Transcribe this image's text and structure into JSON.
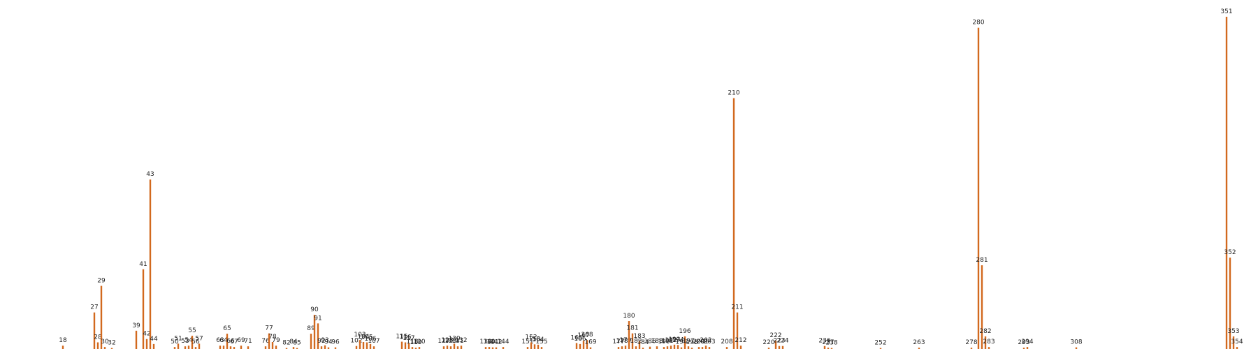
{
  "chart_data": {
    "type": "bar",
    "title": "",
    "xlabel": "",
    "ylabel": "",
    "bar_color": "#d2691e",
    "grid": false,
    "axes_visible": false,
    "xlim": [
      0,
      360
    ],
    "ylim": [
      0,
      100
    ],
    "points": [
      {
        "x": 18,
        "y": 1,
        "label": "18"
      },
      {
        "x": 27,
        "y": 11,
        "label": "27"
      },
      {
        "x": 28,
        "y": 2,
        "label": "28"
      },
      {
        "x": 29,
        "y": 19,
        "label": "29"
      },
      {
        "x": 30,
        "y": 0.6,
        "label": "30"
      },
      {
        "x": 32,
        "y": 0.3,
        "label": "32"
      },
      {
        "x": 39,
        "y": 5.5,
        "label": "39"
      },
      {
        "x": 41,
        "y": 24,
        "label": "41"
      },
      {
        "x": 42,
        "y": 3,
        "label": "42"
      },
      {
        "x": 43,
        "y": 51,
        "label": "43"
      },
      {
        "x": 44,
        "y": 1.5,
        "label": "44"
      },
      {
        "x": 50,
        "y": 0.6,
        "label": "50"
      },
      {
        "x": 51,
        "y": 1.6,
        "label": "51"
      },
      {
        "x": 53,
        "y": 0.8,
        "label": "53"
      },
      {
        "x": 54,
        "y": 1,
        "label": "54"
      },
      {
        "x": 55,
        "y": 4,
        "label": "55"
      },
      {
        "x": 56,
        "y": 0.6,
        "label": "56"
      },
      {
        "x": 57,
        "y": 1.6,
        "label": "57"
      },
      {
        "x": 63,
        "y": 1,
        "label": "63"
      },
      {
        "x": 64,
        "y": 1,
        "label": "64"
      },
      {
        "x": 65,
        "y": 4.6,
        "label": "65"
      },
      {
        "x": 66,
        "y": 0.8,
        "label": "66"
      },
      {
        "x": 67,
        "y": 0.6,
        "label": "67"
      },
      {
        "x": 69,
        "y": 1,
        "label": "69"
      },
      {
        "x": 71,
        "y": 0.8,
        "label": "71"
      },
      {
        "x": 76,
        "y": 0.8,
        "label": "76"
      },
      {
        "x": 77,
        "y": 4.7,
        "label": "77"
      },
      {
        "x": 78,
        "y": 2.1,
        "label": "78"
      },
      {
        "x": 79,
        "y": 1,
        "label": "79"
      },
      {
        "x": 82,
        "y": 0.3,
        "label": "82"
      },
      {
        "x": 84,
        "y": 0.6,
        "label": "84"
      },
      {
        "x": 85,
        "y": 0.3,
        "label": "85"
      },
      {
        "x": 89,
        "y": 4.6,
        "label": "89"
      },
      {
        "x": 90,
        "y": 10.3,
        "label": "90"
      },
      {
        "x": 91,
        "y": 7.7,
        "label": "91"
      },
      {
        "x": 92,
        "y": 0.8,
        "label": "92"
      },
      {
        "x": 93,
        "y": 1.1,
        "label": "93"
      },
      {
        "x": 94,
        "y": 0.5,
        "label": "94"
      },
      {
        "x": 96,
        "y": 0.5,
        "label": "96"
      },
      {
        "x": 102,
        "y": 0.9,
        "label": "102"
      },
      {
        "x": 103,
        "y": 2.7,
        "label": "103"
      },
      {
        "x": 104,
        "y": 2.1,
        "label": "104"
      },
      {
        "x": 105,
        "y": 2,
        "label": "105"
      },
      {
        "x": 106,
        "y": 1.5,
        "label": "106"
      },
      {
        "x": 107,
        "y": 0.8,
        "label": "107"
      },
      {
        "x": 115,
        "y": 2.2,
        "label": "115"
      },
      {
        "x": 116,
        "y": 2,
        "label": "116"
      },
      {
        "x": 117,
        "y": 1.7,
        "label": "117"
      },
      {
        "x": 118,
        "y": 0.6,
        "label": "118"
      },
      {
        "x": 119,
        "y": 0.4,
        "label": "119"
      },
      {
        "x": 120,
        "y": 0.6,
        "label": "120"
      },
      {
        "x": 127,
        "y": 0.8,
        "label": "127"
      },
      {
        "x": 128,
        "y": 1,
        "label": "128"
      },
      {
        "x": 129,
        "y": 0.8,
        "label": "129"
      },
      {
        "x": 130,
        "y": 1.6,
        "label": "130"
      },
      {
        "x": 131,
        "y": 0.8,
        "label": "131"
      },
      {
        "x": 132,
        "y": 1,
        "label": "132"
      },
      {
        "x": 139,
        "y": 0.6,
        "label": "139"
      },
      {
        "x": 140,
        "y": 0.6,
        "label": "140"
      },
      {
        "x": 141,
        "y": 0.5,
        "label": "141"
      },
      {
        "x": 142,
        "y": 0.5,
        "label": "142"
      },
      {
        "x": 144,
        "y": 0.6,
        "label": "144"
      },
      {
        "x": 151,
        "y": 0.6,
        "label": "151"
      },
      {
        "x": 152,
        "y": 2,
        "label": "152"
      },
      {
        "x": 153,
        "y": 1.4,
        "label": "153"
      },
      {
        "x": 154,
        "y": 1.3,
        "label": "154"
      },
      {
        "x": 155,
        "y": 0.6,
        "label": "155"
      },
      {
        "x": 165,
        "y": 1.8,
        "label": "165"
      },
      {
        "x": 166,
        "y": 1.5,
        "label": "166"
      },
      {
        "x": 167,
        "y": 2.5,
        "label": "167"
      },
      {
        "x": 168,
        "y": 2.7,
        "label": "168"
      },
      {
        "x": 169,
        "y": 0.5,
        "label": "169"
      },
      {
        "x": 177,
        "y": 0.6,
        "label": "177"
      },
      {
        "x": 178,
        "y": 0.8,
        "label": "178"
      },
      {
        "x": 179,
        "y": 1,
        "label": "179"
      },
      {
        "x": 180,
        "y": 8.4,
        "label": "180"
      },
      {
        "x": 181,
        "y": 4.7,
        "label": "181"
      },
      {
        "x": 182,
        "y": 0.8,
        "label": "182"
      },
      {
        "x": 183,
        "y": 2.3,
        "label": "183"
      },
      {
        "x": 184,
        "y": 0.4,
        "label": "184"
      },
      {
        "x": 186,
        "y": 0.7,
        "label": "186"
      },
      {
        "x": 188,
        "y": 0.8,
        "label": "188"
      },
      {
        "x": 190,
        "y": 0.6,
        "label": "190"
      },
      {
        "x": 191,
        "y": 0.8,
        "label": "191"
      },
      {
        "x": 192,
        "y": 1,
        "label": "192"
      },
      {
        "x": 193,
        "y": 1.3,
        "label": "193"
      },
      {
        "x": 194,
        "y": 1.2,
        "label": "194"
      },
      {
        "x": 195,
        "y": 0.5,
        "label": "195"
      },
      {
        "x": 196,
        "y": 3.8,
        "label": "196"
      },
      {
        "x": 197,
        "y": 0.8,
        "label": "197"
      },
      {
        "x": 198,
        "y": 0.4,
        "label": "198"
      },
      {
        "x": 200,
        "y": 0.6,
        "label": "200"
      },
      {
        "x": 201,
        "y": 0.6,
        "label": "201"
      },
      {
        "x": 202,
        "y": 1,
        "label": "202"
      },
      {
        "x": 203,
        "y": 0.6,
        "label": "203"
      },
      {
        "x": 208,
        "y": 0.6,
        "label": "208"
      },
      {
        "x": 210,
        "y": 75.5,
        "label": "210"
      },
      {
        "x": 211,
        "y": 11,
        "label": "211"
      },
      {
        "x": 212,
        "y": 1,
        "label": "212"
      },
      {
        "x": 220,
        "y": 0.4,
        "label": "220"
      },
      {
        "x": 222,
        "y": 2.5,
        "label": "222"
      },
      {
        "x": 223,
        "y": 0.9,
        "label": "223"
      },
      {
        "x": 224,
        "y": 0.9,
        "label": "224"
      },
      {
        "x": 236,
        "y": 0.9,
        "label": "236"
      },
      {
        "x": 237,
        "y": 0.4,
        "label": "237"
      },
      {
        "x": 238,
        "y": 0.3,
        "label": "238"
      },
      {
        "x": 252,
        "y": 0.3,
        "label": "252"
      },
      {
        "x": 263,
        "y": 0.4,
        "label": "263"
      },
      {
        "x": 278,
        "y": 0.4,
        "label": "278"
      },
      {
        "x": 280,
        "y": 96.7,
        "label": "280"
      },
      {
        "x": 281,
        "y": 25.2,
        "label": "281"
      },
      {
        "x": 282,
        "y": 3.8,
        "label": "282"
      },
      {
        "x": 283,
        "y": 0.6,
        "label": "283"
      },
      {
        "x": 293,
        "y": 0.4,
        "label": "293"
      },
      {
        "x": 294,
        "y": 0.6,
        "label": "294"
      },
      {
        "x": 308,
        "y": 0.5,
        "label": "308"
      },
      {
        "x": 351,
        "y": 100,
        "label": "351"
      },
      {
        "x": 352,
        "y": 27.5,
        "label": "352"
      },
      {
        "x": 353,
        "y": 3.8,
        "label": "353"
      },
      {
        "x": 354,
        "y": 0.6,
        "label": "354"
      }
    ]
  }
}
